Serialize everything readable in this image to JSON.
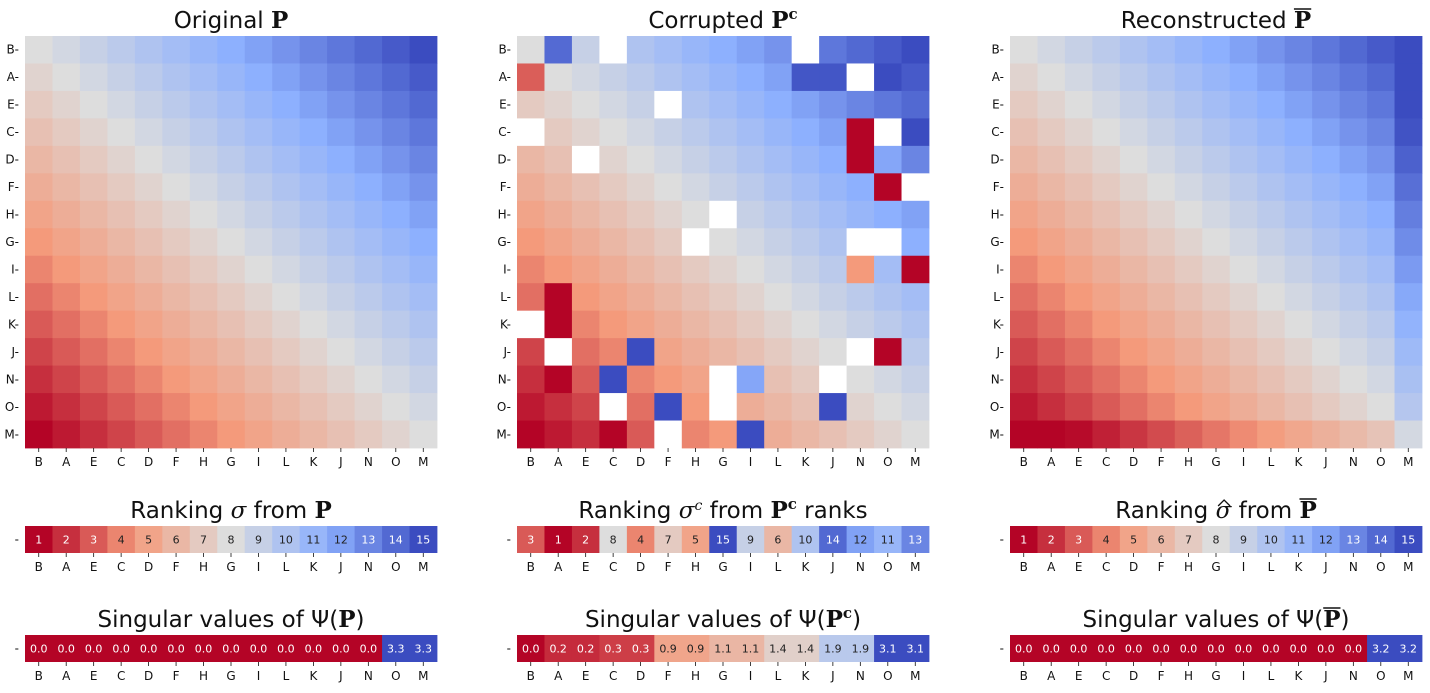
{
  "chart_data": [
    {
      "type": "heatmap",
      "id": "original",
      "title": {
        "prefix": "Original ",
        "symbol": "P"
      },
      "categories": [
        "B",
        "A",
        "E",
        "C",
        "D",
        "F",
        "H",
        "G",
        "I",
        "L",
        "K",
        "J",
        "N",
        "O",
        "M"
      ],
      "generator": "smooth",
      "bottom_row_boost": 0,
      "last_col_boost": 0
    },
    {
      "type": "heatmap",
      "id": "corrupted",
      "title": {
        "prefix": "Corrupted ",
        "symbol": "P",
        "superscript": "c"
      },
      "categories": [
        "B",
        "A",
        "E",
        "C",
        "D",
        "F",
        "H",
        "G",
        "I",
        "L",
        "K",
        "J",
        "N",
        "O",
        "M"
      ],
      "generator": "smooth",
      "overrides": [
        {
          "row": 0,
          "col": 1,
          "v": 0.85
        },
        {
          "row": 0,
          "col": 3,
          "v": null
        },
        {
          "row": 0,
          "col": 10,
          "v": null
        },
        {
          "row": 1,
          "col": 0,
          "v": -0.7
        },
        {
          "row": 1,
          "col": 10,
          "v": 0.95
        },
        {
          "row": 1,
          "col": 11,
          "v": 0.95
        },
        {
          "row": 1,
          "col": 12,
          "v": null
        },
        {
          "row": 1,
          "col": 13,
          "v": 1.0
        },
        {
          "row": 2,
          "col": 5,
          "v": null
        },
        {
          "row": 3,
          "col": 0,
          "v": null
        },
        {
          "row": 3,
          "col": 12,
          "v": -1.0
        },
        {
          "row": 3,
          "col": 13,
          "v": null
        },
        {
          "row": 3,
          "col": 14,
          "v": 1.0
        },
        {
          "row": 4,
          "col": 2,
          "v": null
        },
        {
          "row": 4,
          "col": 12,
          "v": -1.0
        },
        {
          "row": 4,
          "col": 13,
          "v": 0.55
        },
        {
          "row": 5,
          "col": 13,
          "v": -1.0
        },
        {
          "row": 5,
          "col": 14,
          "v": null
        },
        {
          "row": 6,
          "col": 7,
          "v": null
        },
        {
          "row": 7,
          "col": 6,
          "v": null
        },
        {
          "row": 7,
          "col": 12,
          "v": null
        },
        {
          "row": 7,
          "col": 13,
          "v": null
        },
        {
          "row": 8,
          "col": 12,
          "v": -0.5
        },
        {
          "row": 8,
          "col": 14,
          "v": -1.0
        },
        {
          "row": 9,
          "col": 1,
          "v": -1.0
        },
        {
          "row": 10,
          "col": 0,
          "v": null
        },
        {
          "row": 10,
          "col": 1,
          "v": -1.0
        },
        {
          "row": 11,
          "col": 1,
          "v": null
        },
        {
          "row": 11,
          "col": 4,
          "v": 1.0
        },
        {
          "row": 11,
          "col": 12,
          "v": null
        },
        {
          "row": 11,
          "col": 13,
          "v": -1.0
        },
        {
          "row": 12,
          "col": 1,
          "v": -1.0
        },
        {
          "row": 12,
          "col": 3,
          "v": 1.0
        },
        {
          "row": 12,
          "col": 7,
          "v": null
        },
        {
          "row": 12,
          "col": 8,
          "v": 0.55
        },
        {
          "row": 12,
          "col": 11,
          "v": null
        },
        {
          "row": 13,
          "col": 3,
          "v": null
        },
        {
          "row": 13,
          "col": 5,
          "v": 1.0
        },
        {
          "row": 13,
          "col": 7,
          "v": null
        },
        {
          "row": 13,
          "col": 11,
          "v": 1.0
        },
        {
          "row": 14,
          "col": 3,
          "v": -1.0
        },
        {
          "row": 14,
          "col": 5,
          "v": null
        },
        {
          "row": 14,
          "col": 8,
          "v": 1.0
        }
      ]
    },
    {
      "type": "heatmap",
      "id": "reconstructed",
      "title": {
        "prefix": "Reconstructed ",
        "symbol": "P",
        "overline": true
      },
      "categories": [
        "B",
        "A",
        "E",
        "C",
        "D",
        "F",
        "H",
        "G",
        "I",
        "L",
        "K",
        "J",
        "N",
        "O",
        "M"
      ],
      "generator": "smooth",
      "bottom_row_boost": 0.12,
      "last_col_boost": 0.18
    },
    {
      "type": "table",
      "id": "rank-orig",
      "title": {
        "prefix": "Ranking ",
        "sym": "σ",
        "mid": " from ",
        "symbol": "P"
      },
      "categories": [
        "B",
        "A",
        "E",
        "C",
        "D",
        "F",
        "H",
        "G",
        "I",
        "L",
        "K",
        "J",
        "N",
        "O",
        "M"
      ],
      "values": [
        1,
        2,
        3,
        4,
        5,
        6,
        7,
        8,
        9,
        10,
        11,
        12,
        13,
        14,
        15
      ],
      "labels": [
        "1",
        "2",
        "3",
        "4",
        "5",
        "6",
        "7",
        "8",
        "9",
        "10",
        "11",
        "12",
        "13",
        "14",
        "15"
      ],
      "range": [
        1,
        15
      ],
      "ylabel": "-"
    },
    {
      "type": "table",
      "id": "rank-corr",
      "title": {
        "prefix": "Ranking ",
        "sym": "σ",
        "symsup": "c",
        "mid": " from ",
        "symbol": "P",
        "superscript": "c",
        "suffix": " ranks"
      },
      "categories": [
        "B",
        "A",
        "E",
        "C",
        "D",
        "F",
        "H",
        "G",
        "I",
        "L",
        "K",
        "J",
        "N",
        "O",
        "M"
      ],
      "values": [
        3,
        1,
        2,
        8,
        4,
        7,
        5,
        15,
        9,
        6,
        10,
        14,
        12,
        11,
        13
      ],
      "labels": [
        "3",
        "1",
        "2",
        "8",
        "4",
        "7",
        "5",
        "15",
        "9",
        "6",
        "10",
        "14",
        "12",
        "11",
        "13"
      ],
      "range": [
        1,
        15
      ],
      "ylabel": "-"
    },
    {
      "type": "table",
      "id": "rank-recon",
      "title": {
        "prefix": "Ranking ",
        "sym": "σ",
        "hat": true,
        "mid": " from ",
        "symbol": "P",
        "overline": true
      },
      "categories": [
        "B",
        "A",
        "E",
        "C",
        "D",
        "F",
        "H",
        "G",
        "I",
        "L",
        "K",
        "J",
        "N",
        "O",
        "M"
      ],
      "values": [
        1,
        2,
        3,
        4,
        5,
        6,
        7,
        8,
        9,
        10,
        11,
        12,
        13,
        14,
        15
      ],
      "labels": [
        "1",
        "2",
        "3",
        "4",
        "5",
        "6",
        "7",
        "8",
        "9",
        "10",
        "11",
        "12",
        "13",
        "14",
        "15"
      ],
      "range": [
        1,
        15
      ],
      "ylabel": "-"
    },
    {
      "type": "table",
      "id": "sv-orig",
      "title": {
        "prefix": "Singular values of Ψ(",
        "symbol": "P",
        "suffix": ")"
      },
      "categories": [
        "B",
        "A",
        "E",
        "C",
        "D",
        "F",
        "H",
        "G",
        "I",
        "L",
        "K",
        "J",
        "N",
        "O",
        "M"
      ],
      "values": [
        0,
        0,
        0,
        0,
        0,
        0,
        0,
        0,
        0,
        0,
        0,
        0,
        0,
        3.3,
        3.3
      ],
      "labels": [
        "0.0",
        "0.0",
        "0.0",
        "0.0",
        "0.0",
        "0.0",
        "0.0",
        "0.0",
        "0.0",
        "0.0",
        "0.0",
        "0.0",
        "0.0",
        "3.3",
        "3.3"
      ],
      "range": [
        0,
        3.3
      ],
      "ylabel": "-"
    },
    {
      "type": "table",
      "id": "sv-corr",
      "title": {
        "prefix": "Singular values of Ψ(",
        "symbol": "P",
        "superscript": "c",
        "suffix": ")"
      },
      "categories": [
        "B",
        "A",
        "E",
        "C",
        "D",
        "F",
        "H",
        "G",
        "I",
        "L",
        "K",
        "J",
        "N",
        "O",
        "M"
      ],
      "values": [
        0.0,
        0.2,
        0.2,
        0.3,
        0.3,
        0.9,
        0.9,
        1.1,
        1.1,
        1.4,
        1.4,
        1.9,
        1.9,
        3.1,
        3.1
      ],
      "labels": [
        "0.0",
        "0.2",
        "0.2",
        "0.3",
        "0.3",
        "0.9",
        "0.9",
        "1.1",
        "1.1",
        "1.4",
        "1.4",
        "1.9",
        "1.9",
        "3.1",
        "3.1"
      ],
      "range": [
        0,
        3.1
      ],
      "ylabel": "-"
    },
    {
      "type": "table",
      "id": "sv-recon",
      "title": {
        "prefix": "Singular values of Ψ(",
        "symbol": "P",
        "overline": true,
        "suffix": ")"
      },
      "categories": [
        "B",
        "A",
        "E",
        "C",
        "D",
        "F",
        "H",
        "G",
        "I",
        "L",
        "K",
        "J",
        "N",
        "O",
        "M"
      ],
      "values": [
        0,
        0,
        0,
        0,
        0,
        0,
        0,
        0,
        0,
        0,
        0,
        0,
        0,
        3.2,
        3.2
      ],
      "labels": [
        "0.0",
        "0.0",
        "0.0",
        "0.0",
        "0.0",
        "0.0",
        "0.0",
        "0.0",
        "0.0",
        "0.0",
        "0.0",
        "0.0",
        "0.0",
        "3.2",
        "3.2"
      ],
      "range": [
        0,
        3.2
      ],
      "ylabel": "-"
    }
  ]
}
